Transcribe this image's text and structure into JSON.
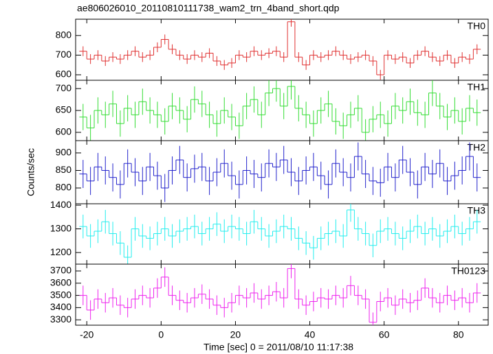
{
  "chart_data": {
    "type": "line",
    "title": "ae806026010_20110810111738_wam2_trn_4band_short.qdp",
    "xlabel": "Time [sec] 0 = 2011/08/10 11:17:38",
    "ylabel": "Counts/sec",
    "x": [
      -21,
      -19,
      -17,
      -15,
      -13,
      -11,
      -9,
      -7,
      -5,
      -3,
      -1,
      1,
      3,
      5,
      7,
      9,
      11,
      13,
      15,
      17,
      19,
      21,
      23,
      25,
      27,
      29,
      31,
      33,
      35,
      37,
      39,
      41,
      43,
      45,
      47,
      49,
      51,
      53,
      55,
      57,
      59,
      61,
      63,
      65,
      67,
      69,
      71,
      73,
      75,
      77,
      79,
      81,
      83,
      85
    ],
    "xlim": [
      -23,
      88
    ],
    "xticks": [
      -20,
      0,
      20,
      40,
      60,
      80
    ],
    "panels": [
      {
        "name": "TH0",
        "color": "#e03030",
        "error": 25,
        "ylim": [
          572,
          883
        ],
        "yticks": [
          600,
          700,
          800
        ],
        "values": [
          720,
          680,
          700,
          670,
          690,
          680,
          700,
          720,
          690,
          700,
          740,
          780,
          730,
          700,
          680,
          700,
          690,
          710,
          670,
          650,
          660,
          700,
          690,
          720,
          700,
          710,
          720,
          690,
          870,
          690,
          650,
          700,
          690,
          700,
          720,
          700,
          680,
          690,
          700,
          670,
          600,
          700,
          680,
          690,
          660,
          700,
          720,
          690,
          670,
          700,
          660,
          690,
          680,
          730
        ]
      },
      {
        "name": "TH1",
        "color": "#33dd33",
        "error": 30,
        "ylim": [
          581,
          719
        ],
        "yticks": [
          600,
          650,
          700
        ],
        "values": [
          635,
          610,
          650,
          640,
          665,
          620,
          655,
          640,
          670,
          650,
          640,
          625,
          660,
          650,
          630,
          675,
          665,
          640,
          620,
          650,
          635,
          615,
          660,
          675,
          640,
          690,
          700,
          660,
          705,
          655,
          640,
          620,
          650,
          665,
          625,
          615,
          640,
          655,
          600,
          630,
          640,
          620,
          660,
          650,
          670,
          645,
          640,
          690,
          660,
          635,
          650,
          625,
          655,
          645
        ]
      },
      {
        "name": "TH2",
        "color": "#2222cc",
        "error": 40,
        "ylim": [
          755,
          935
        ],
        "yticks": [
          800,
          850,
          900
        ],
        "values": [
          840,
          820,
          860,
          850,
          830,
          810,
          870,
          845,
          820,
          860,
          835,
          800,
          850,
          880,
          830,
          855,
          860,
          820,
          845,
          870,
          835,
          810,
          850,
          840,
          830,
          870,
          860,
          880,
          845,
          820,
          850,
          860,
          835,
          810,
          870,
          845,
          830,
          890,
          840,
          820,
          815,
          860,
          830,
          880,
          845,
          810,
          860,
          840,
          870,
          820,
          835,
          850,
          890,
          830
        ]
      },
      {
        "name": "TH3",
        "color": "#22eeee",
        "error": 50,
        "ylim": [
          1151,
          1406
        ],
        "yticks": [
          1200,
          1300,
          1400
        ],
        "values": [
          1310,
          1270,
          1290,
          1330,
          1280,
          1240,
          1180,
          1300,
          1270,
          1260,
          1280,
          1300,
          1270,
          1290,
          1300,
          1310,
          1280,
          1300,
          1320,
          1290,
          1310,
          1300,
          1280,
          1330,
          1300,
          1270,
          1290,
          1310,
          1300,
          1260,
          1240,
          1220,
          1260,
          1280,
          1290,
          1270,
          1380,
          1300,
          1280,
          1230,
          1290,
          1300,
          1280,
          1260,
          1290,
          1310,
          1280,
          1300,
          1270,
          1290,
          1310,
          1280,
          1300,
          1330
        ]
      },
      {
        "name": "TH0123",
        "color": "#ee22ee",
        "error": 80,
        "ylim": [
          3256,
          3756
        ],
        "yticks": [
          3300,
          3400,
          3500,
          3600,
          3700
        ],
        "values": [
          3500,
          3380,
          3470,
          3440,
          3480,
          3420,
          3400,
          3470,
          3500,
          3480,
          3560,
          3650,
          3500,
          3460,
          3440,
          3480,
          3510,
          3470,
          3420,
          3400,
          3440,
          3500,
          3480,
          3520,
          3470,
          3500,
          3530,
          3480,
          3720,
          3470,
          3420,
          3450,
          3480,
          3470,
          3500,
          3480,
          3580,
          3500,
          3470,
          3280,
          3450,
          3480,
          3420,
          3470,
          3440,
          3460,
          3560,
          3480,
          3440,
          3500,
          3460,
          3480,
          3440,
          3520
        ]
      }
    ]
  }
}
